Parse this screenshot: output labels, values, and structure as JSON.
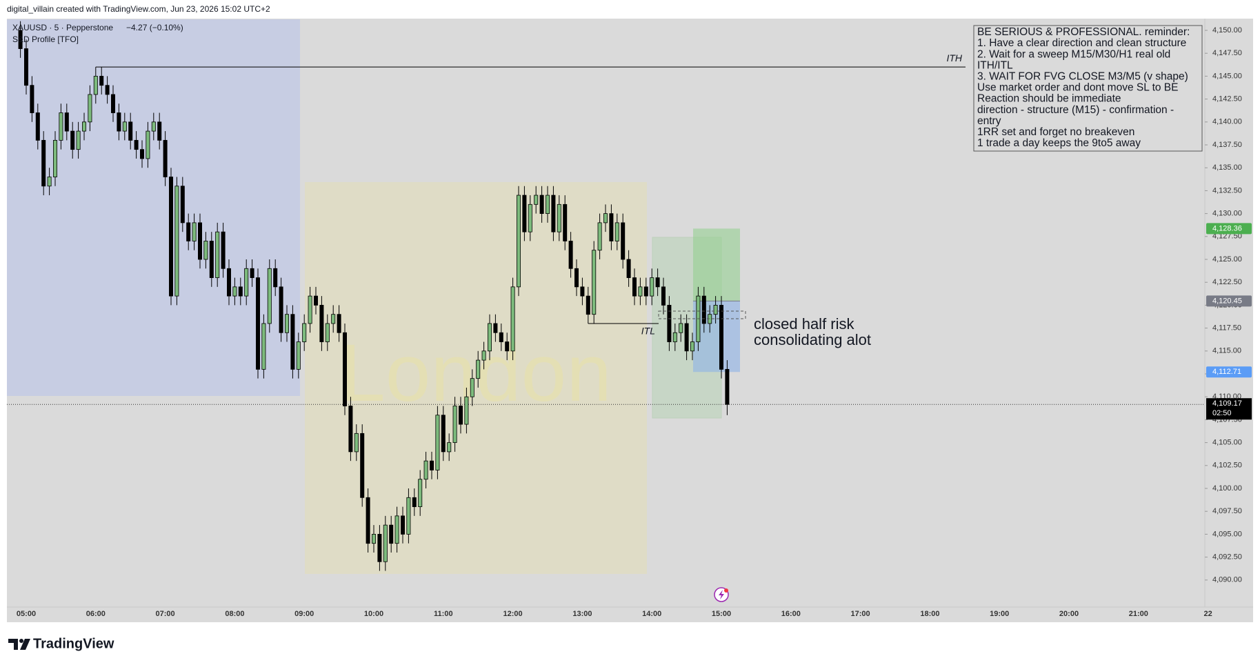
{
  "header": {
    "credit": "digital_villain created with TradingView.com, Jun 23, 2026 15:02 UTC+2"
  },
  "footer": {
    "brand": "TradingView"
  },
  "chart_data": {
    "type": "candlestick",
    "title": "XAUUSD · 5 · Pepperstone",
    "change": "−4.27 (−0.10%)",
    "indicator": "S&D Profile [TFO]",
    "up_color": "#7dbb7d",
    "down_color": "#000000",
    "grid": false,
    "open": [
      4150,
      4148,
      4144,
      4141,
      4138,
      4133,
      4134,
      4138,
      4141,
      4139,
      4137,
      4139,
      4140,
      4143,
      4145,
      4144,
      4143,
      4141,
      4139,
      4140,
      4138,
      4137,
      4136,
      4139,
      4140,
      4138,
      4134,
      4121,
      4133,
      4129,
      4127,
      4129,
      4125,
      4127,
      4123,
      4128,
      4124,
      4121,
      4122,
      4121,
      4124,
      4123,
      4113,
      4118,
      4124,
      4122,
      4117,
      4119,
      4113,
      4116,
      4118,
      4121,
      4120,
      4116,
      4118,
      4119,
      4117,
      4109,
      4104,
      4106,
      4099,
      4094,
      4095,
      4092,
      4096,
      4094,
      4097,
      4095,
      4099,
      4098,
      4101,
      4103,
      4102,
      4108,
      4104,
      4105,
      4109,
      4107,
      4110,
      4112,
      4114,
      4115,
      4118,
      4117,
      4116,
      4115,
      4122,
      4132,
      4128,
      4131,
      4132,
      4130,
      4132,
      4128,
      4131,
      4127,
      4124,
      4122,
      4121,
      4119,
      4126,
      4129,
      4130,
      4127,
      4129,
      4125,
      4123,
      4121,
      4122,
      4121,
      4123,
      4122,
      4120,
      4116,
      4117,
      4118,
      4115,
      4116,
      4121,
      4118,
      4119,
      4120,
      4113
    ],
    "high": [
      4151,
      4149,
      4145,
      4142,
      4139,
      4135,
      4139,
      4142,
      4142,
      4140,
      4140,
      4141,
      4144,
      4146,
      4146,
      4145,
      4144,
      4142,
      4141,
      4141,
      4139,
      4138,
      4140,
      4141,
      4141,
      4139,
      4135,
      4134,
      4134,
      4130,
      4130,
      4130,
      4128,
      4128,
      4129,
      4129,
      4125,
      4123,
      4123,
      4125,
      4125,
      4124,
      4119,
      4125,
      4125,
      4123,
      4120,
      4120,
      4117,
      4119,
      4122,
      4122,
      4121,
      4119,
      4120,
      4120,
      4118,
      4110,
      4107,
      4107,
      4100,
      4096,
      4096,
      4097,
      4097,
      4098,
      4098,
      4100,
      4100,
      4102,
      4104,
      4104,
      4109,
      4109,
      4106,
      4110,
      4110,
      4111,
      4113,
      4115,
      4116,
      4119,
      4119,
      4118,
      4117,
      4123,
      4133,
      4133,
      4132,
      4133,
      4133,
      4133,
      4133,
      4132,
      4132,
      4128,
      4125,
      4123,
      4122,
      4127,
      4130,
      4131,
      4131,
      4130,
      4130,
      4126,
      4124,
      4123,
      4123,
      4124,
      4124,
      4123,
      4121,
      4118,
      4119,
      4119,
      4117,
      4122,
      4122,
      4120,
      4121,
      4121,
      4114
    ],
    "low": [
      4147,
      4143,
      4140,
      4137,
      4132,
      4132,
      4133,
      4137,
      4138,
      4136,
      4136,
      4138,
      4139,
      4142,
      4143,
      4142,
      4140,
      4138,
      4138,
      4137,
      4136,
      4135,
      4135,
      4138,
      4137,
      4133,
      4120,
      4120,
      4128,
      4126,
      4126,
      4124,
      4124,
      4122,
      4122,
      4123,
      4120,
      4120,
      4120,
      4120,
      4122,
      4112,
      4112,
      4117,
      4121,
      4116,
      4116,
      4112,
      4112,
      4115,
      4117,
      4119,
      4115,
      4115,
      4117,
      4116,
      4108,
      4103,
      4103,
      4098,
      4093,
      4093,
      4091,
      4091,
      4093,
      4093,
      4094,
      4094,
      4097,
      4097,
      4100,
      4101,
      4101,
      4103,
      4103,
      4104,
      4106,
      4106,
      4109,
      4111,
      4113,
      4114,
      4116,
      4115,
      4114,
      4114,
      4121,
      4127,
      4127,
      4130,
      4129,
      4129,
      4127,
      4127,
      4126,
      4123,
      4121,
      4120,
      4118,
      4118,
      4125,
      4128,
      4126,
      4126,
      4124,
      4122,
      4120,
      4120,
      4120,
      4120,
      4121,
      4119,
      4115,
      4115,
      4116,
      4114,
      4114,
      4115,
      4117,
      4117,
      4118,
      4112,
      4108
    ],
    "close": [
      4148,
      4144,
      4141,
      4138,
      4133,
      4134,
      4138,
      4141,
      4139,
      4137,
      4139,
      4140,
      4143,
      4145,
      4144,
      4143,
      4141,
      4139,
      4140,
      4138,
      4137,
      4136,
      4139,
      4140,
      4138,
      4134,
      4121,
      4133,
      4129,
      4127,
      4129,
      4125,
      4127,
      4123,
      4128,
      4124,
      4121,
      4122,
      4121,
      4124,
      4123,
      4113,
      4118,
      4124,
      4122,
      4117,
      4119,
      4113,
      4116,
      4118,
      4121,
      4120,
      4116,
      4118,
      4119,
      4117,
      4109,
      4104,
      4106,
      4099,
      4094,
      4095,
      4092,
      4096,
      4094,
      4097,
      4095,
      4099,
      4098,
      4101,
      4103,
      4102,
      4108,
      4104,
      4105,
      4109,
      4107,
      4110,
      4112,
      4114,
      4115,
      4118,
      4117,
      4116,
      4115,
      4122,
      4132,
      4128,
      4131,
      4132,
      4130,
      4132,
      4128,
      4131,
      4127,
      4124,
      4122,
      4121,
      4119,
      4126,
      4129,
      4130,
      4127,
      4129,
      4125,
      4123,
      4121,
      4122,
      4121,
      4123,
      4122,
      4120,
      4116,
      4117,
      4118,
      4115,
      4116,
      4121,
      4118,
      4119,
      4120,
      4113,
      4109.17
    ],
    "ylim": [
      4087.05,
      4151.28
    ],
    "yticks": [
      {
        "value": 4090,
        "label": "4,090.00"
      },
      {
        "value": 4092.5,
        "label": "4,092.50"
      },
      {
        "value": 4095,
        "label": "4,095.00"
      },
      {
        "value": 4097.5,
        "label": "4,097.50"
      },
      {
        "value": 4100,
        "label": "4,100.00"
      },
      {
        "value": 4102.5,
        "label": "4,102.50"
      },
      {
        "value": 4105,
        "label": "4,105.00"
      },
      {
        "value": 4107.5,
        "label": "4,107.50"
      },
      {
        "value": 4110,
        "label": "4,110.00"
      },
      {
        "value": 4112.5,
        "label": "4,112.50"
      },
      {
        "value": 4115,
        "label": "4,115.00"
      },
      {
        "value": 4117.5,
        "label": "4,117.50"
      },
      {
        "value": 4120,
        "label": "4,120.00"
      },
      {
        "value": 4122.5,
        "label": "4,122.50"
      },
      {
        "value": 4125,
        "label": "4,125.00"
      },
      {
        "value": 4127.5,
        "label": "4,127.50"
      },
      {
        "value": 4130,
        "label": "4,130.00"
      },
      {
        "value": 4132.5,
        "label": "4,132.50"
      },
      {
        "value": 4135,
        "label": "4,135.00"
      },
      {
        "value": 4137.5,
        "label": "4,137.50"
      },
      {
        "value": 4140,
        "label": "4,140.00"
      },
      {
        "value": 4142.5,
        "label": "4,142.50"
      },
      {
        "value": 4145,
        "label": "4,145.00"
      },
      {
        "value": 4147.5,
        "label": "4,147.50"
      },
      {
        "value": 4150,
        "label": "4,150.00"
      }
    ],
    "xticks": [
      "05:00",
      "06:00",
      "07:00",
      "08:00",
      "09:00",
      "10:00",
      "11:00",
      "12:00",
      "13:00",
      "14:00",
      "15:00",
      "16:00",
      "17:00",
      "18:00",
      "19:00",
      "20:00",
      "21:00",
      "22"
    ],
    "price_labels": [
      {
        "value": 4128.36,
        "label": "4,128.36",
        "color": "#4caf50"
      },
      {
        "value": 4120.45,
        "label": "4,120.45",
        "color": "#787b86"
      },
      {
        "value": 4112.71,
        "label": "4,112.71",
        "color": "#5b9cf6"
      }
    ],
    "last_price": {
      "value": 4109.17,
      "label": "4,109.17",
      "countdown": "02:50"
    },
    "ith": {
      "value": 4146,
      "label": "ITH"
    },
    "itl": {
      "value": 4118,
      "label": "ITL"
    },
    "session_label": "London",
    "annotation": [
      "closed half risk",
      "consolidating alot"
    ],
    "note": [
      "BE SERIOUS & PROFESSIONAL. reminder:",
      "1. Have a clear direction and clean structure",
      "2. Wait for a sweep M15/M30/H1 real old",
      "ITH/ITL",
      "3. WAIT FOR FVG CLOSE M3/M5 (v shape)",
      "Use market order and dont move SL to BE",
      "Reaction should be immediate",
      "direction - structure (M15) - confirmation -",
      "entry",
      "1RR set and forget no breakeven",
      "1 trade a day keeps the 9to5 away"
    ]
  }
}
